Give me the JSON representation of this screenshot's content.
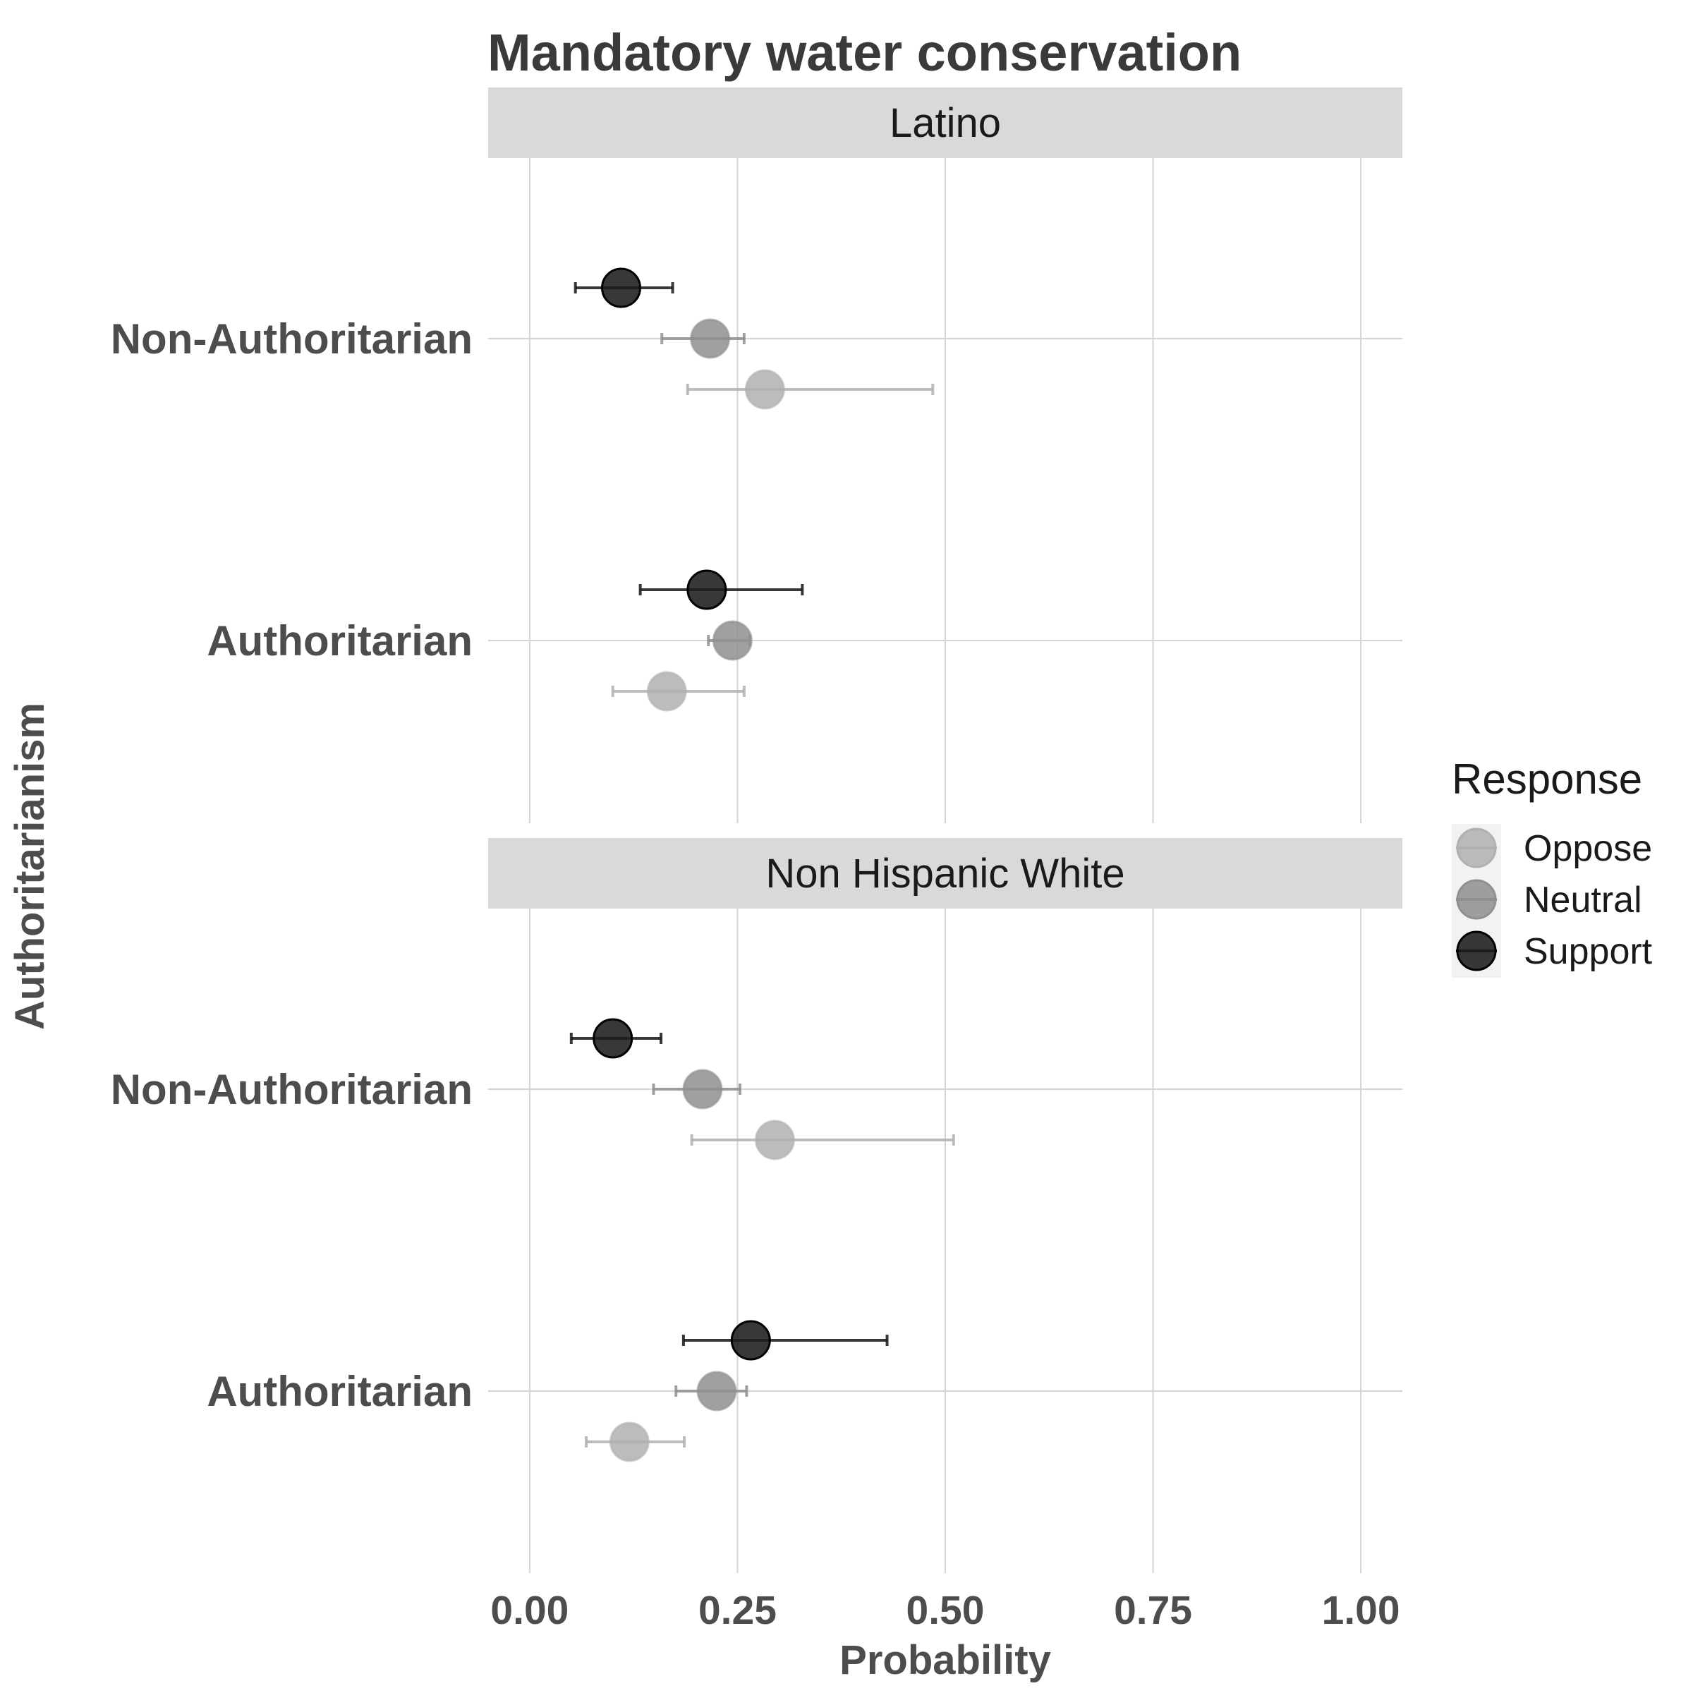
{
  "chart_data": {
    "type": "dot-errorbar",
    "title": "Mandatory water conservation",
    "xlabel": "Probability",
    "ylabel": "Authoritarianism",
    "xlim": [
      -0.05,
      1.05
    ],
    "xticks": [
      0,
      0.25,
      0.5,
      0.75,
      1.0
    ],
    "xtick_labels": [
      "0.00",
      "0.25",
      "0.50",
      "0.75",
      "1.00"
    ],
    "categories": [
      "Non-Authoritarian",
      "Authoritarian"
    ],
    "legend": {
      "title": "Response",
      "position": "right",
      "entries": [
        {
          "name": "Oppose",
          "color": "#b0b0b0"
        },
        {
          "name": "Neutral",
          "color": "#8f8f8f"
        },
        {
          "name": "Support",
          "color": "#1c1c1c"
        }
      ]
    },
    "panels": [
      {
        "label": "Latino",
        "groups": [
          {
            "category": "Non-Authoritarian",
            "points": [
              {
                "response": "Support",
                "value": 0.11,
                "lower": 0.055,
                "upper": 0.172
              },
              {
                "response": "Neutral",
                "value": 0.217,
                "lower": 0.159,
                "upper": 0.258
              },
              {
                "response": "Oppose",
                "value": 0.283,
                "lower": 0.19,
                "upper": 0.485
              }
            ]
          },
          {
            "category": "Authoritarian",
            "points": [
              {
                "response": "Support",
                "value": 0.213,
                "lower": 0.133,
                "upper": 0.328
              },
              {
                "response": "Neutral",
                "value": 0.244,
                "lower": 0.215,
                "upper": 0.265
              },
              {
                "response": "Oppose",
                "value": 0.165,
                "lower": 0.1,
                "upper": 0.258
              }
            ]
          }
        ]
      },
      {
        "label": "Non Hispanic White",
        "groups": [
          {
            "category": "Non-Authoritarian",
            "points": [
              {
                "response": "Support",
                "value": 0.1,
                "lower": 0.05,
                "upper": 0.158
              },
              {
                "response": "Neutral",
                "value": 0.208,
                "lower": 0.149,
                "upper": 0.253
              },
              {
                "response": "Oppose",
                "value": 0.295,
                "lower": 0.195,
                "upper": 0.51
              }
            ]
          },
          {
            "category": "Authoritarian",
            "points": [
              {
                "response": "Support",
                "value": 0.266,
                "lower": 0.185,
                "upper": 0.43
              },
              {
                "response": "Neutral",
                "value": 0.225,
                "lower": 0.176,
                "upper": 0.261
              },
              {
                "response": "Oppose",
                "value": 0.12,
                "lower": 0.068,
                "upper": 0.186
              }
            ]
          }
        ]
      }
    ]
  }
}
